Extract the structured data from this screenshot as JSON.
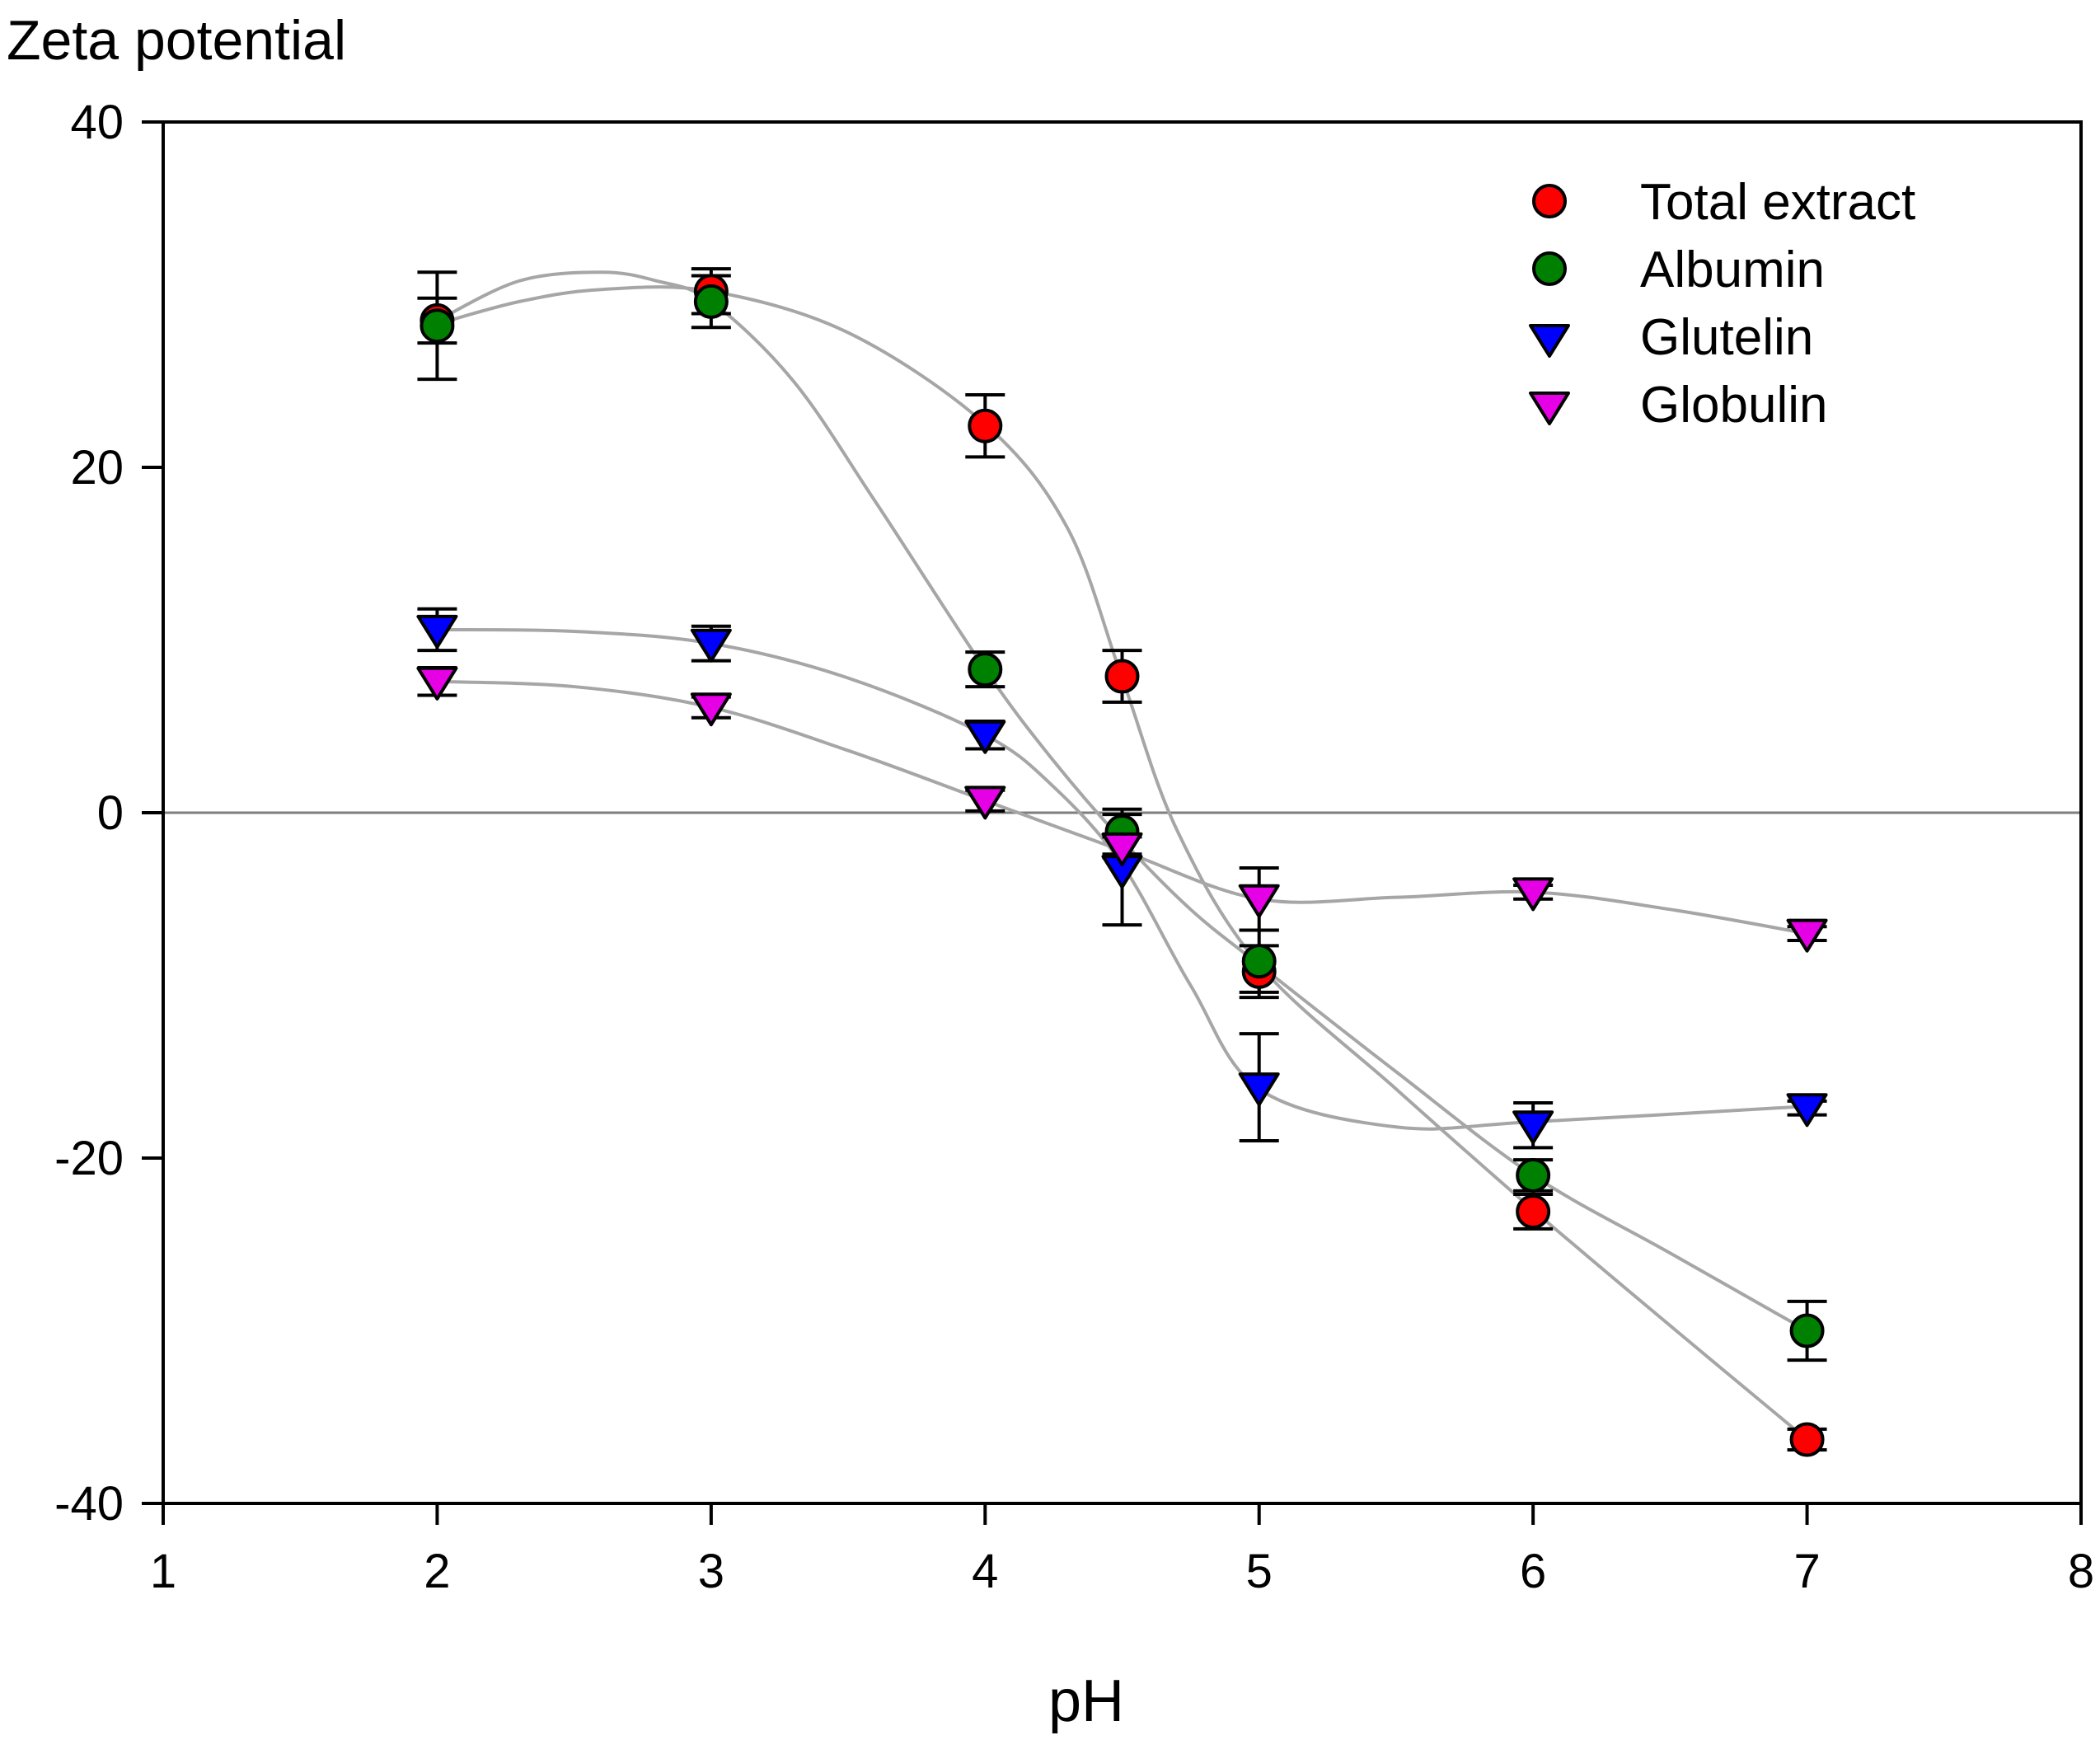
{
  "chart_data": {
    "type": "scatter",
    "title": "Zeta potential",
    "xlabel": "pH",
    "ylabel": "Zeta potential",
    "xlim": [
      1,
      8
    ],
    "ylim": [
      -40,
      40
    ],
    "xticks": [
      "1",
      "2",
      "3",
      "4",
      "5",
      "6",
      "7",
      "8"
    ],
    "yticks": [
      "40",
      "20",
      "0",
      "-20",
      "-40"
    ],
    "grid": false,
    "legend_position": "top-right",
    "reference_line_y": 0,
    "series": [
      {
        "name": "Total extract",
        "marker": "circle",
        "color": "#ff0000",
        "x": [
          2,
          3,
          4,
          4.5,
          5,
          6,
          7
        ],
        "y": [
          28.5,
          30.2,
          22.4,
          7.9,
          -9.2,
          -23.1,
          -36.3
        ],
        "err": [
          1.3,
          1.3,
          1.8,
          1.5,
          1.5,
          1.0,
          0.6
        ],
        "curve_x": [
          2,
          2.3,
          2.6,
          3,
          3.5,
          4,
          4.3,
          4.5,
          4.7,
          5,
          5.5,
          6,
          6.5,
          7
        ],
        "curve_y": [
          28.3,
          29.6,
          30.3,
          30.2,
          27.8,
          22.5,
          16.5,
          7.8,
          -1.0,
          -8.8,
          -16.0,
          -23.0,
          -29.7,
          -36.3
        ]
      },
      {
        "name": "Albumin",
        "marker": "circle",
        "color": "#008000",
        "x": [
          2,
          3,
          4,
          4.5,
          5,
          6,
          7
        ],
        "y": [
          28.2,
          29.6,
          8.3,
          -1.1,
          -8.6,
          -21.0,
          -30.0
        ],
        "err": [
          3.1,
          1.5,
          1.0,
          1.3,
          1.8,
          0.9,
          1.7
        ],
        "curve_x": [
          2,
          2.3,
          2.6,
          2.8,
          3,
          3.3,
          3.6,
          4,
          4.25,
          4.5,
          4.75,
          5,
          5.5,
          6,
          6.5,
          7
        ],
        "curve_y": [
          28.5,
          30.8,
          31.3,
          30.8,
          29.6,
          25.0,
          18.0,
          8.3,
          3.0,
          -1.6,
          -5.6,
          -8.8,
          -15.0,
          -21.0,
          -25.5,
          -30.0
        ]
      },
      {
        "name": "Glutelin",
        "marker": "triangle-down",
        "color": "#0000ff",
        "x": [
          2,
          3,
          4,
          4.5,
          5,
          6,
          7
        ],
        "y": [
          10.6,
          9.8,
          4.5,
          -3.3,
          -15.9,
          -18.1,
          -17.1
        ],
        "err": [
          1.2,
          1.0,
          0.8,
          3.2,
          3.1,
          1.3,
          0.4
        ],
        "curve_x": [
          2,
          2.5,
          3,
          3.5,
          4,
          4.25,
          4.5,
          4.75,
          5,
          5.5,
          6,
          7
        ],
        "curve_y": [
          10.6,
          10.5,
          9.8,
          7.8,
          4.5,
          1.5,
          -3.0,
          -10.0,
          -16.0,
          -18.2,
          -17.9,
          -17.0
        ]
      },
      {
        "name": "Globulin",
        "marker": "triangle-down",
        "color": "#e600e6",
        "x": [
          2,
          3,
          4,
          4.5,
          5,
          6,
          7
        ],
        "y": [
          7.6,
          6.1,
          0.7,
          -2.0,
          -5.0,
          -4.6,
          -7.0
        ],
        "err": [
          0.8,
          0.6,
          0.6,
          0.6,
          1.8,
          0.4,
          0.4
        ],
        "curve_x": [
          2,
          2.5,
          3,
          3.5,
          4,
          4.5,
          5,
          5.5,
          6,
          6.5,
          7
        ],
        "curve_y": [
          7.6,
          7.3,
          6.1,
          3.6,
          0.7,
          -2.2,
          -5.0,
          -4.9,
          -4.6,
          -5.6,
          -7.0
        ]
      }
    ]
  }
}
